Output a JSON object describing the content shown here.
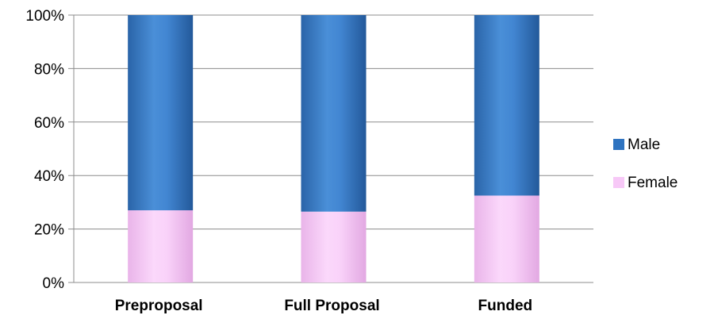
{
  "chart_data": {
    "type": "bar",
    "stacked": true,
    "percent": true,
    "categories": [
      "Preproposal",
      "Full Proposal",
      "Funded"
    ],
    "series": [
      {
        "name": "Female",
        "values": [
          27,
          26.5,
          32.5
        ],
        "color": "#f5c6f5"
      },
      {
        "name": "Male",
        "values": [
          73,
          73.5,
          67.5
        ],
        "color": "#3a7cc6"
      }
    ],
    "ylim": [
      0,
      100
    ],
    "yticks": [
      "0%",
      "20%",
      "40%",
      "60%",
      "80%",
      "100%"
    ],
    "ytick_values": [
      0,
      20,
      40,
      60,
      80,
      100
    ],
    "grid": true,
    "legend": {
      "placement": "right",
      "entries": [
        {
          "label": "Male",
          "color": "#2e73c0"
        },
        {
          "label": "Female",
          "color": "#f7c8f7"
        }
      ]
    }
  }
}
